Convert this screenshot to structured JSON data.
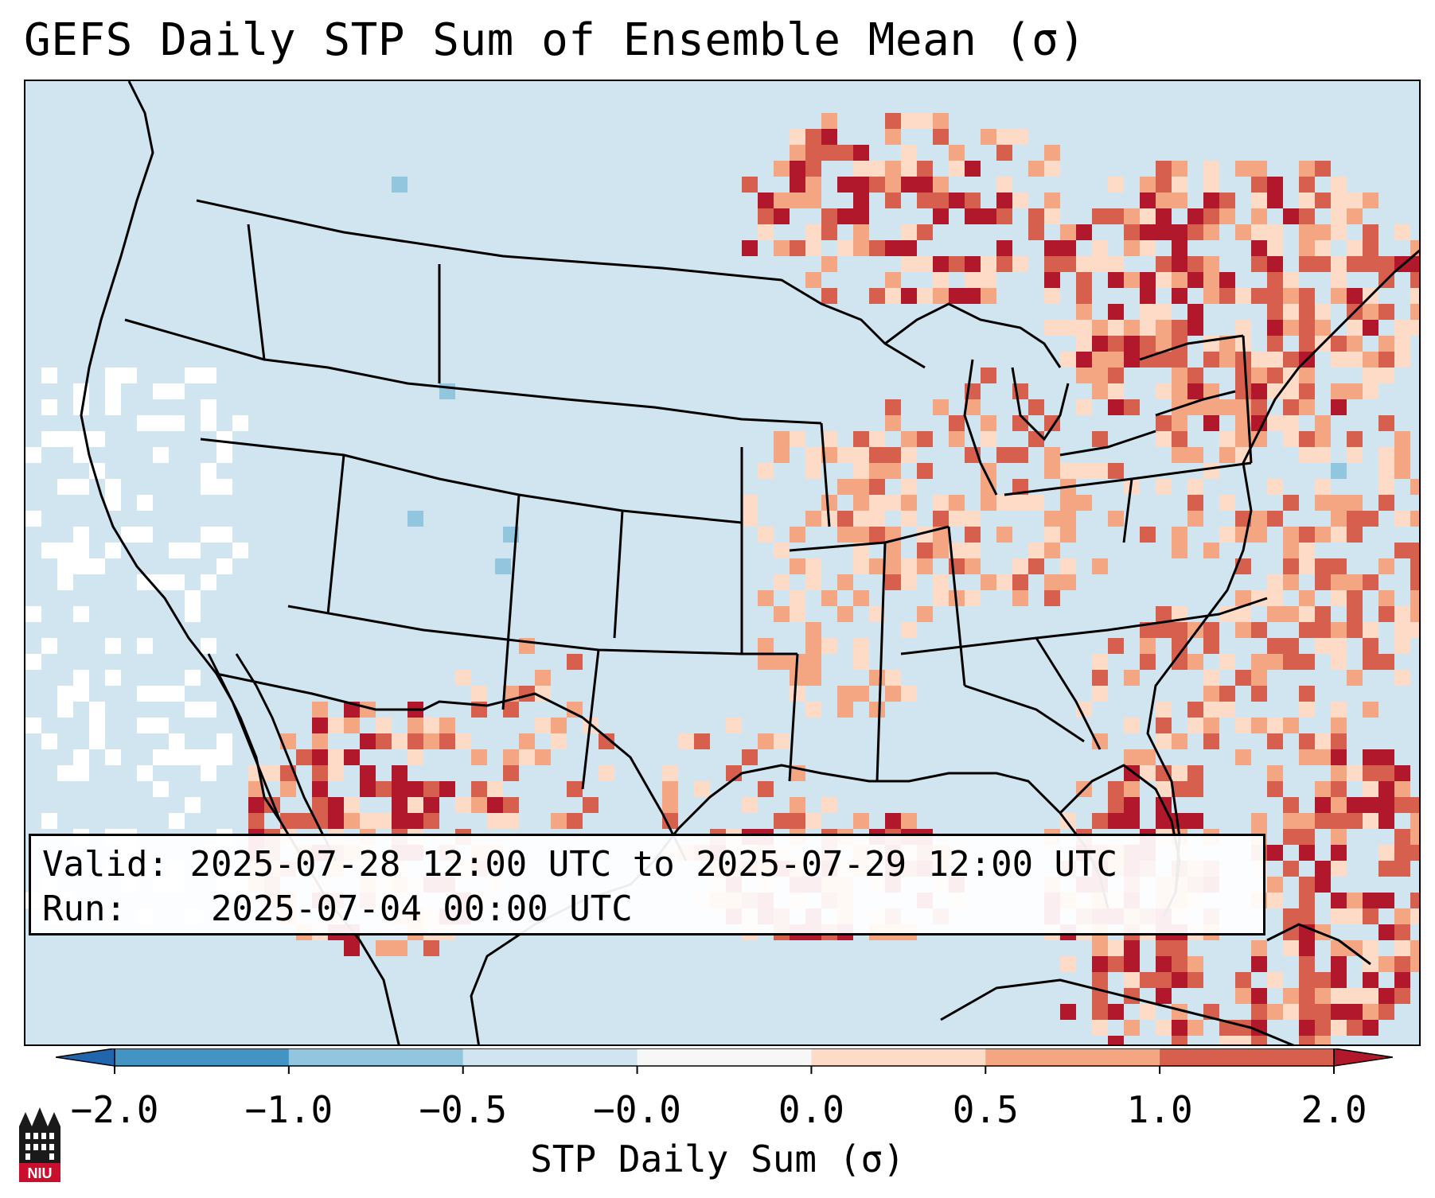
{
  "title": "GEFS Daily STP Sum of Ensemble Mean (σ)",
  "info": {
    "valid_label": "Valid:",
    "valid_value": "2025-07-28 12:00 UTC to 2025-07-29 12:00 UTC",
    "run_label": "Run:",
    "run_value": "2025-07-04 00:00 UTC"
  },
  "colorbar": {
    "label": "STP Daily Sum (σ)",
    "ticks": [
      "−2.0",
      "−1.0",
      "−0.5",
      "−0.0",
      "0.0",
      "0.5",
      "1.0",
      "2.0"
    ],
    "colors": [
      "#2166ac",
      "#4393c3",
      "#92c5de",
      "#d1e5f0",
      "#f7f7f7",
      "#fddbc7",
      "#f4a582",
      "#d6604d",
      "#b2182b"
    ]
  },
  "map_colors": {
    "ocean_background": "#d1e5f0",
    "neutral": "#ffffff",
    "light_positive": "#fddbc7",
    "medium_positive": "#f4a582",
    "strong_positive": "#d6604d",
    "very_strong_positive": "#b2182b",
    "light_negative": "#92c5de"
  },
  "logo": {
    "text": "NIU",
    "name": "niu-logo"
  }
}
